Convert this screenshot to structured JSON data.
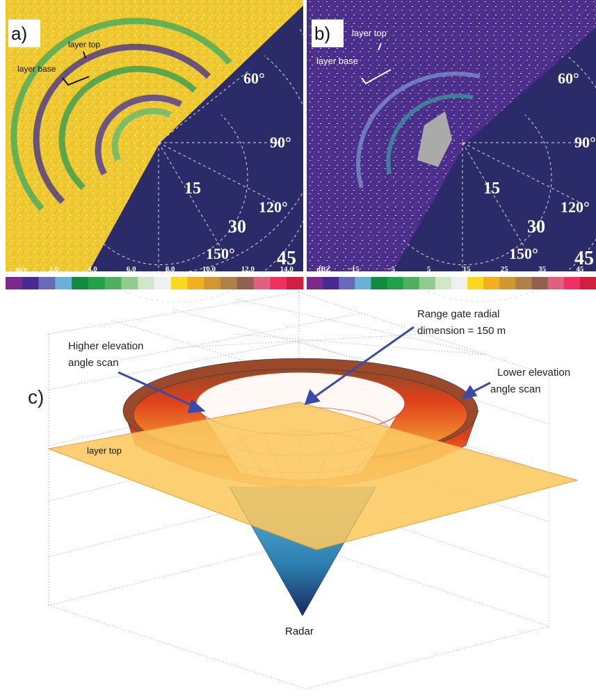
{
  "panel_a": {
    "label": "a)",
    "layer_top": "layer top",
    "layer_base": "layer base",
    "ranges": [
      "15",
      "30",
      "45"
    ],
    "angles": [
      "60°",
      "90°",
      "120°",
      "150°"
    ],
    "colorbar": {
      "unit": "m/s",
      "ticks": [
        "2.0",
        "4.0",
        "6.0",
        "8.0",
        "10.0",
        "12.0",
        "14.0"
      ]
    }
  },
  "panel_b": {
    "label": "b)",
    "layer_top": "layer top",
    "layer_base": "layer base",
    "ranges": [
      "15",
      "30",
      "45"
    ],
    "angles": [
      "60°",
      "90°",
      "120°",
      "150°"
    ],
    "colorbar": {
      "unit": "dBZ",
      "ticks": [
        "−15",
        "−5",
        "5",
        "15",
        "25",
        "35",
        "45"
      ]
    }
  },
  "panel_c": {
    "label": "c)",
    "higher_scan": [
      "Higher elevation",
      "angle scan"
    ],
    "range_gate": [
      "Range gate radial",
      "dimension = 150 m"
    ],
    "lower_scan": [
      "Lower elevation",
      "angle scan"
    ],
    "layer_top": "layer top",
    "radar": "Radar"
  }
}
